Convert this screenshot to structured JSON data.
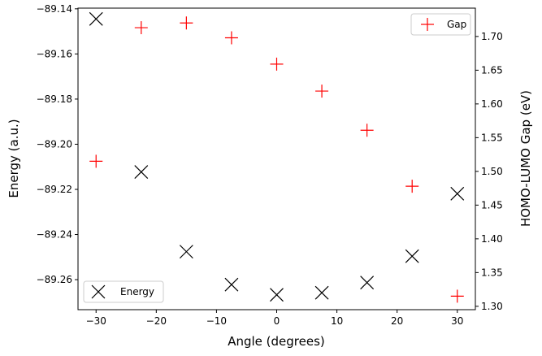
{
  "chart_data": {
    "type": "scatter",
    "title": "",
    "xlabel": "Angle (degrees)",
    "ylabel_left": "Energy (a.u.)",
    "ylabel_right": "HOMO-LUMO Gap (eV)",
    "xlim": [
      -33,
      33
    ],
    "ylim_left": [
      -89.2733,
      -89.1397
    ],
    "ylim_right": [
      1.295,
      1.742
    ],
    "grid": false,
    "x": [
      -30,
      -22.5,
      -15,
      -7.5,
      0,
      7.5,
      15,
      22.5,
      30
    ],
    "x_ticks": [
      "−30",
      "−20",
      "−10",
      "0",
      "10",
      "20",
      "30"
    ],
    "x_tick_values": [
      -30,
      -20,
      -10,
      0,
      10,
      20,
      30
    ],
    "y_left_ticks": [
      "−89.14",
      "−89.16",
      "−89.18",
      "−89.20",
      "−89.22",
      "−89.24",
      "−89.26"
    ],
    "y_left_tick_values": [
      -89.14,
      -89.16,
      -89.18,
      -89.2,
      -89.22,
      -89.24,
      -89.26
    ],
    "y_right_ticks": [
      "1.30",
      "1.35",
      "1.40",
      "1.45",
      "1.50",
      "1.55",
      "1.60",
      "1.65",
      "1.70"
    ],
    "y_right_tick_values": [
      1.3,
      1.35,
      1.4,
      1.45,
      1.5,
      1.55,
      1.6,
      1.65,
      1.7
    ],
    "series": [
      {
        "name": "Energy",
        "axis": "left",
        "marker": "x",
        "color": "#000000",
        "values": [
          -89.1445,
          -89.2123,
          -89.2476,
          -89.2622,
          -89.2667,
          -89.2658,
          -89.2613,
          -89.2496,
          -89.2219
        ]
      },
      {
        "name": "Gap",
        "axis": "right",
        "marker": "+",
        "color": "#ff0000",
        "values": [
          1.515,
          1.713,
          1.72,
          1.698,
          1.659,
          1.619,
          1.561,
          1.478,
          1.315
        ]
      }
    ],
    "legends": [
      {
        "series": "Gap",
        "placement": "top-right"
      },
      {
        "series": "Energy",
        "placement": "bottom-left"
      }
    ]
  }
}
